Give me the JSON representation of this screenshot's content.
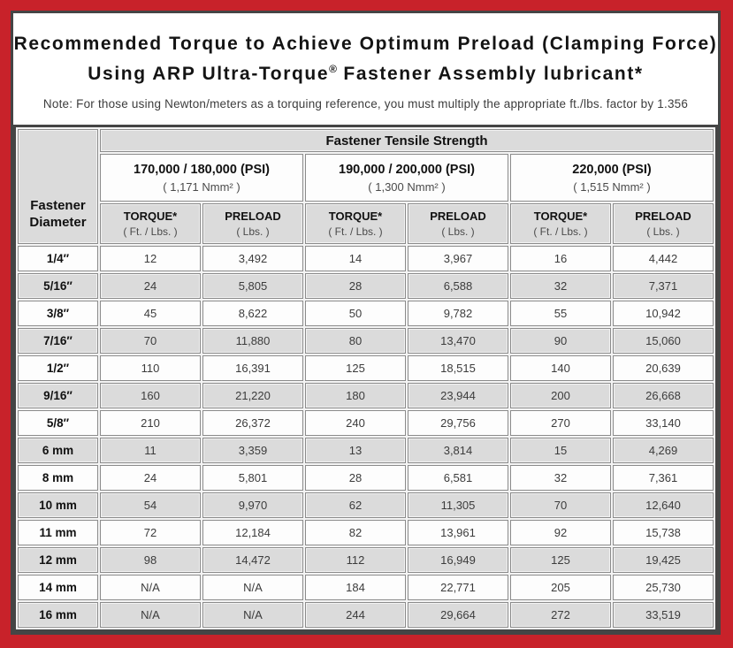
{
  "colors": {
    "frame_red": "#c8222a",
    "panel_border": "#454545",
    "header_gray": "#dbdbdb",
    "row_alt_gray": "#dbdbdb",
    "cell_border": "#8b8b8b"
  },
  "title": {
    "line1": "Recommended Torque to Achieve Optimum Preload (Clamping Force)",
    "line2_pre": "Using ARP Ultra-Torque",
    "line2_sup": "®",
    "line2_post": " Fastener Assembly lubricant*",
    "note": "Note: For those using Newton/meters as a torquing reference, you must multiply the appropriate ft./lbs. factor by 1.356"
  },
  "table": {
    "corner_header_line1": "Fastener",
    "corner_header_line2": "Diameter",
    "tensile_header": "Fastener Tensile Strength",
    "groups": [
      {
        "psi": "170,000 / 180,000 (PSI)",
        "nmm": "( 1,171 Nmm² )"
      },
      {
        "psi": "190,000 / 200,000 (PSI)",
        "nmm": "( 1,300 Nmm² )"
      },
      {
        "psi": "220,000 (PSI)",
        "nmm": "( 1,515 Nmm² )"
      }
    ],
    "sub_headers": {
      "torque_label": "TORQUE*",
      "torque_unit": "( Ft. / Lbs. )",
      "preload_label": "PRELOAD",
      "preload_unit": "( Lbs. )"
    },
    "rows": [
      {
        "diameter": "1/4″",
        "values": [
          "12",
          "3,492",
          "14",
          "3,967",
          "16",
          "4,442"
        ]
      },
      {
        "diameter": "5/16″",
        "values": [
          "24",
          "5,805",
          "28",
          "6,588",
          "32",
          "7,371"
        ]
      },
      {
        "diameter": "3/8″",
        "values": [
          "45",
          "8,622",
          "50",
          "9,782",
          "55",
          "10,942"
        ]
      },
      {
        "diameter": "7/16″",
        "values": [
          "70",
          "11,880",
          "80",
          "13,470",
          "90",
          "15,060"
        ]
      },
      {
        "diameter": "1/2″",
        "values": [
          "110",
          "16,391",
          "125",
          "18,515",
          "140",
          "20,639"
        ]
      },
      {
        "diameter": "9/16″",
        "values": [
          "160",
          "21,220",
          "180",
          "23,944",
          "200",
          "26,668"
        ]
      },
      {
        "diameter": "5/8″",
        "values": [
          "210",
          "26,372",
          "240",
          "29,756",
          "270",
          "33,140"
        ]
      },
      {
        "diameter": "6 mm",
        "values": [
          "11",
          "3,359",
          "13",
          "3,814",
          "15",
          "4,269"
        ]
      },
      {
        "diameter": "8 mm",
        "values": [
          "24",
          "5,801",
          "28",
          "6,581",
          "32",
          "7,361"
        ]
      },
      {
        "diameter": "10 mm",
        "values": [
          "54",
          "9,970",
          "62",
          "11,305",
          "70",
          "12,640"
        ]
      },
      {
        "diameter": "11 mm",
        "values": [
          "72",
          "12,184",
          "82",
          "13,961",
          "92",
          "15,738"
        ]
      },
      {
        "diameter": "12 mm",
        "values": [
          "98",
          "14,472",
          "112",
          "16,949",
          "125",
          "19,425"
        ]
      },
      {
        "diameter": "14 mm",
        "values": [
          "N/A",
          "N/A",
          "184",
          "22,771",
          "205",
          "25,730"
        ]
      },
      {
        "diameter": "16 mm",
        "values": [
          "N/A",
          "N/A",
          "244",
          "29,664",
          "272",
          "33,519"
        ]
      }
    ]
  }
}
